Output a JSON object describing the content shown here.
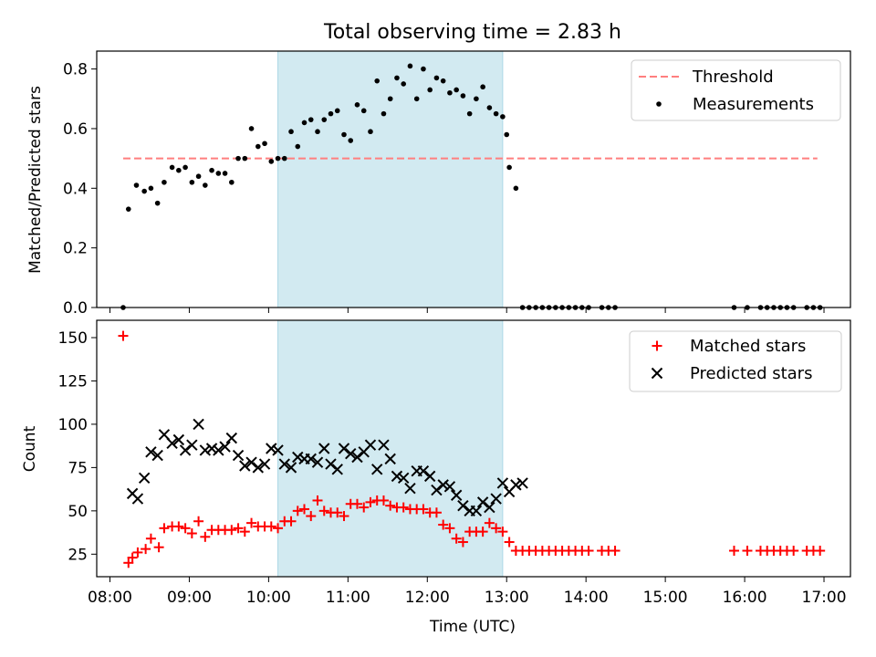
{
  "colors": {
    "shade": "#add8e6",
    "threshold": "#ff7f7f",
    "measurements": "#000000",
    "matched": "#ff0000",
    "predicted": "#000000"
  },
  "chart_data": [
    {
      "type": "scatter",
      "title": "Total observing time = 2.83 h",
      "xlabel": "",
      "ylabel": "Matched/Predicted stars",
      "x_unit": "time (UTC, HH:MM)",
      "xlim": [
        "07:50",
        "17:20"
      ],
      "ylim": [
        0,
        0.86
      ],
      "yticks": [
        "0.0",
        "0.2",
        "0.4",
        "0.6",
        "0.8"
      ],
      "legend_position": "top-right",
      "shaded_span": [
        "10:07",
        "12:57"
      ],
      "threshold": {
        "name": "Threshold",
        "x": [
          "08:10",
          "16:55"
        ],
        "value": 0.5
      },
      "series": [
        {
          "name": "Measurements",
          "points": [
            [
              "08:10",
              0.0
            ],
            [
              "08:14",
              0.33
            ],
            [
              "08:20",
              0.41
            ],
            [
              "08:26",
              0.39
            ],
            [
              "08:31",
              0.4
            ],
            [
              "08:36",
              0.35
            ],
            [
              "08:41",
              0.42
            ],
            [
              "08:47",
              0.47
            ],
            [
              "08:52",
              0.46
            ],
            [
              "08:57",
              0.47
            ],
            [
              "09:02",
              0.42
            ],
            [
              "09:07",
              0.44
            ],
            [
              "09:12",
              0.41
            ],
            [
              "09:17",
              0.46
            ],
            [
              "09:22",
              0.45
            ],
            [
              "09:27",
              0.45
            ],
            [
              "09:32",
              0.42
            ],
            [
              "09:37",
              0.5
            ],
            [
              "09:42",
              0.5
            ],
            [
              "09:47",
              0.6
            ],
            [
              "09:52",
              0.54
            ],
            [
              "09:57",
              0.55
            ],
            [
              "10:02",
              0.49
            ],
            [
              "10:07",
              0.5
            ],
            [
              "10:12",
              0.5
            ],
            [
              "10:17",
              0.59
            ],
            [
              "10:22",
              0.54
            ],
            [
              "10:27",
              0.62
            ],
            [
              "10:32",
              0.63
            ],
            [
              "10:37",
              0.59
            ],
            [
              "10:42",
              0.63
            ],
            [
              "10:47",
              0.65
            ],
            [
              "10:52",
              0.66
            ],
            [
              "10:57",
              0.58
            ],
            [
              "11:02",
              0.56
            ],
            [
              "11:07",
              0.68
            ],
            [
              "11:12",
              0.66
            ],
            [
              "11:17",
              0.59
            ],
            [
              "11:22",
              0.76
            ],
            [
              "11:27",
              0.65
            ],
            [
              "11:32",
              0.7
            ],
            [
              "11:37",
              0.77
            ],
            [
              "11:42",
              0.75
            ],
            [
              "11:47",
              0.81
            ],
            [
              "11:52",
              0.7
            ],
            [
              "11:57",
              0.8
            ],
            [
              "12:02",
              0.73
            ],
            [
              "12:07",
              0.77
            ],
            [
              "12:12",
              0.76
            ],
            [
              "12:17",
              0.72
            ],
            [
              "12:22",
              0.73
            ],
            [
              "12:27",
              0.71
            ],
            [
              "12:32",
              0.65
            ],
            [
              "12:37",
              0.7
            ],
            [
              "12:42",
              0.74
            ],
            [
              "12:47",
              0.67
            ],
            [
              "12:52",
              0.65
            ],
            [
              "12:57",
              0.64
            ],
            [
              "13:00",
              0.58
            ],
            [
              "13:02",
              0.47
            ],
            [
              "13:07",
              0.4
            ],
            [
              "13:12",
              0.0
            ],
            [
              "13:17",
              0.0
            ],
            [
              "13:22",
              0.0
            ],
            [
              "13:27",
              0.0
            ],
            [
              "13:32",
              0.0
            ],
            [
              "13:37",
              0.0
            ],
            [
              "13:42",
              0.0
            ],
            [
              "13:47",
              0.0
            ],
            [
              "13:52",
              0.0
            ],
            [
              "13:57",
              0.0
            ],
            [
              "14:02",
              0.0
            ],
            [
              "14:12",
              0.0
            ],
            [
              "14:17",
              0.0
            ],
            [
              "14:22",
              0.0
            ],
            [
              "15:52",
              0.0
            ],
            [
              "16:02",
              0.0
            ],
            [
              "16:12",
              0.0
            ],
            [
              "16:17",
              0.0
            ],
            [
              "16:22",
              0.0
            ],
            [
              "16:27",
              0.0
            ],
            [
              "16:32",
              0.0
            ],
            [
              "16:37",
              0.0
            ],
            [
              "16:47",
              0.0
            ],
            [
              "16:52",
              0.0
            ],
            [
              "16:57",
              0.0
            ]
          ]
        }
      ]
    },
    {
      "type": "scatter",
      "xlabel": "Time (UTC)",
      "ylabel": "Count",
      "x_unit": "time (UTC, HH:MM)",
      "xlim": [
        "07:50",
        "17:20"
      ],
      "ylim": [
        12,
        160
      ],
      "xticks": [
        "08:00",
        "09:00",
        "10:00",
        "11:00",
        "12:00",
        "13:00",
        "14:00",
        "15:00",
        "16:00",
        "17:00"
      ],
      "yticks": [
        "25",
        "50",
        "75",
        "100",
        "125",
        "150"
      ],
      "legend_position": "top-right",
      "shaded_span": [
        "10:07",
        "12:57"
      ],
      "series": [
        {
          "name": "Matched stars",
          "marker": "plus",
          "points": [
            [
              "08:10",
              151
            ],
            [
              "08:14",
              20
            ],
            [
              "08:17",
              23
            ],
            [
              "08:21",
              26
            ],
            [
              "08:27",
              28
            ],
            [
              "08:31",
              34
            ],
            [
              "08:37",
              29
            ],
            [
              "08:41",
              40
            ],
            [
              "08:47",
              41
            ],
            [
              "08:52",
              41
            ],
            [
              "08:57",
              40
            ],
            [
              "09:02",
              37
            ],
            [
              "09:07",
              44
            ],
            [
              "09:12",
              35
            ],
            [
              "09:17",
              39
            ],
            [
              "09:22",
              39
            ],
            [
              "09:27",
              39
            ],
            [
              "09:32",
              39
            ],
            [
              "09:37",
              40
            ],
            [
              "09:42",
              38
            ],
            [
              "09:47",
              43
            ],
            [
              "09:52",
              41
            ],
            [
              "09:57",
              41
            ],
            [
              "10:02",
              41
            ],
            [
              "10:07",
              40
            ],
            [
              "10:12",
              44
            ],
            [
              "10:17",
              44
            ],
            [
              "10:22",
              50
            ],
            [
              "10:27",
              51
            ],
            [
              "10:32",
              47
            ],
            [
              "10:37",
              56
            ],
            [
              "10:42",
              50
            ],
            [
              "10:47",
              49
            ],
            [
              "10:52",
              49
            ],
            [
              "10:57",
              47
            ],
            [
              "11:02",
              54
            ],
            [
              "11:07",
              54
            ],
            [
              "11:12",
              52
            ],
            [
              "11:17",
              55
            ],
            [
              "11:22",
              56
            ],
            [
              "11:27",
              56
            ],
            [
              "11:32",
              53
            ],
            [
              "11:37",
              52
            ],
            [
              "11:42",
              52
            ],
            [
              "11:47",
              51
            ],
            [
              "11:52",
              51
            ],
            [
              "11:57",
              51
            ],
            [
              "12:02",
              49
            ],
            [
              "12:07",
              49
            ],
            [
              "12:12",
              42
            ],
            [
              "12:17",
              40
            ],
            [
              "12:22",
              34
            ],
            [
              "12:27",
              32
            ],
            [
              "12:32",
              38
            ],
            [
              "12:37",
              38
            ],
            [
              "12:42",
              38
            ],
            [
              "12:47",
              43
            ],
            [
              "12:52",
              40
            ],
            [
              "12:57",
              38
            ],
            [
              "13:02",
              32
            ],
            [
              "13:07",
              27
            ],
            [
              "13:12",
              27
            ],
            [
              "13:17",
              27
            ],
            [
              "13:22",
              27
            ],
            [
              "13:27",
              27
            ],
            [
              "13:32",
              27
            ],
            [
              "13:37",
              27
            ],
            [
              "13:42",
              27
            ],
            [
              "13:47",
              27
            ],
            [
              "13:52",
              27
            ],
            [
              "13:57",
              27
            ],
            [
              "14:02",
              27
            ],
            [
              "14:12",
              27
            ],
            [
              "14:17",
              27
            ],
            [
              "14:22",
              27
            ],
            [
              "15:52",
              27
            ],
            [
              "16:02",
              27
            ],
            [
              "16:12",
              27
            ],
            [
              "16:17",
              27
            ],
            [
              "16:22",
              27
            ],
            [
              "16:27",
              27
            ],
            [
              "16:32",
              27
            ],
            [
              "16:37",
              27
            ],
            [
              "16:47",
              27
            ],
            [
              "16:52",
              27
            ],
            [
              "16:57",
              27
            ]
          ]
        },
        {
          "name": "Predicted stars",
          "marker": "x",
          "points": [
            [
              "08:17",
              60
            ],
            [
              "08:21",
              57
            ],
            [
              "08:26",
              69
            ],
            [
              "08:31",
              84
            ],
            [
              "08:36",
              82
            ],
            [
              "08:41",
              94
            ],
            [
              "08:47",
              89
            ],
            [
              "08:52",
              91
            ],
            [
              "08:57",
              85
            ],
            [
              "09:02",
              88
            ],
            [
              "09:07",
              100
            ],
            [
              "09:12",
              85
            ],
            [
              "09:17",
              86
            ],
            [
              "09:22",
              85
            ],
            [
              "09:27",
              87
            ],
            [
              "09:32",
              92
            ],
            [
              "09:37",
              82
            ],
            [
              "09:42",
              76
            ],
            [
              "09:47",
              78
            ],
            [
              "09:52",
              75
            ],
            [
              "09:57",
              77
            ],
            [
              "10:02",
              86
            ],
            [
              "10:07",
              85
            ],
            [
              "10:12",
              77
            ],
            [
              "10:17",
              75
            ],
            [
              "10:22",
              81
            ],
            [
              "10:27",
              80
            ],
            [
              "10:32",
              80
            ],
            [
              "10:37",
              78
            ],
            [
              "10:42",
              86
            ],
            [
              "10:47",
              77
            ],
            [
              "10:52",
              74
            ],
            [
              "10:57",
              86
            ],
            [
              "11:02",
              83
            ],
            [
              "11:07",
              81
            ],
            [
              "11:12",
              84
            ],
            [
              "11:17",
              88
            ],
            [
              "11:22",
              74
            ],
            [
              "11:27",
              88
            ],
            [
              "11:32",
              80
            ],
            [
              "11:37",
              70
            ],
            [
              "11:42",
              69
            ],
            [
              "11:47",
              63
            ],
            [
              "11:52",
              73
            ],
            [
              "11:57",
              73
            ],
            [
              "12:02",
              70
            ],
            [
              "12:07",
              62
            ],
            [
              "12:12",
              65
            ],
            [
              "12:17",
              64
            ],
            [
              "12:22",
              59
            ],
            [
              "12:27",
              53
            ],
            [
              "12:32",
              50
            ],
            [
              "12:37",
              50
            ],
            [
              "12:42",
              55
            ],
            [
              "12:47",
              52
            ],
            [
              "12:52",
              57
            ],
            [
              "12:57",
              66
            ],
            [
              "13:02",
              61
            ],
            [
              "13:07",
              65
            ],
            [
              "13:12",
              66
            ]
          ]
        }
      ]
    }
  ]
}
